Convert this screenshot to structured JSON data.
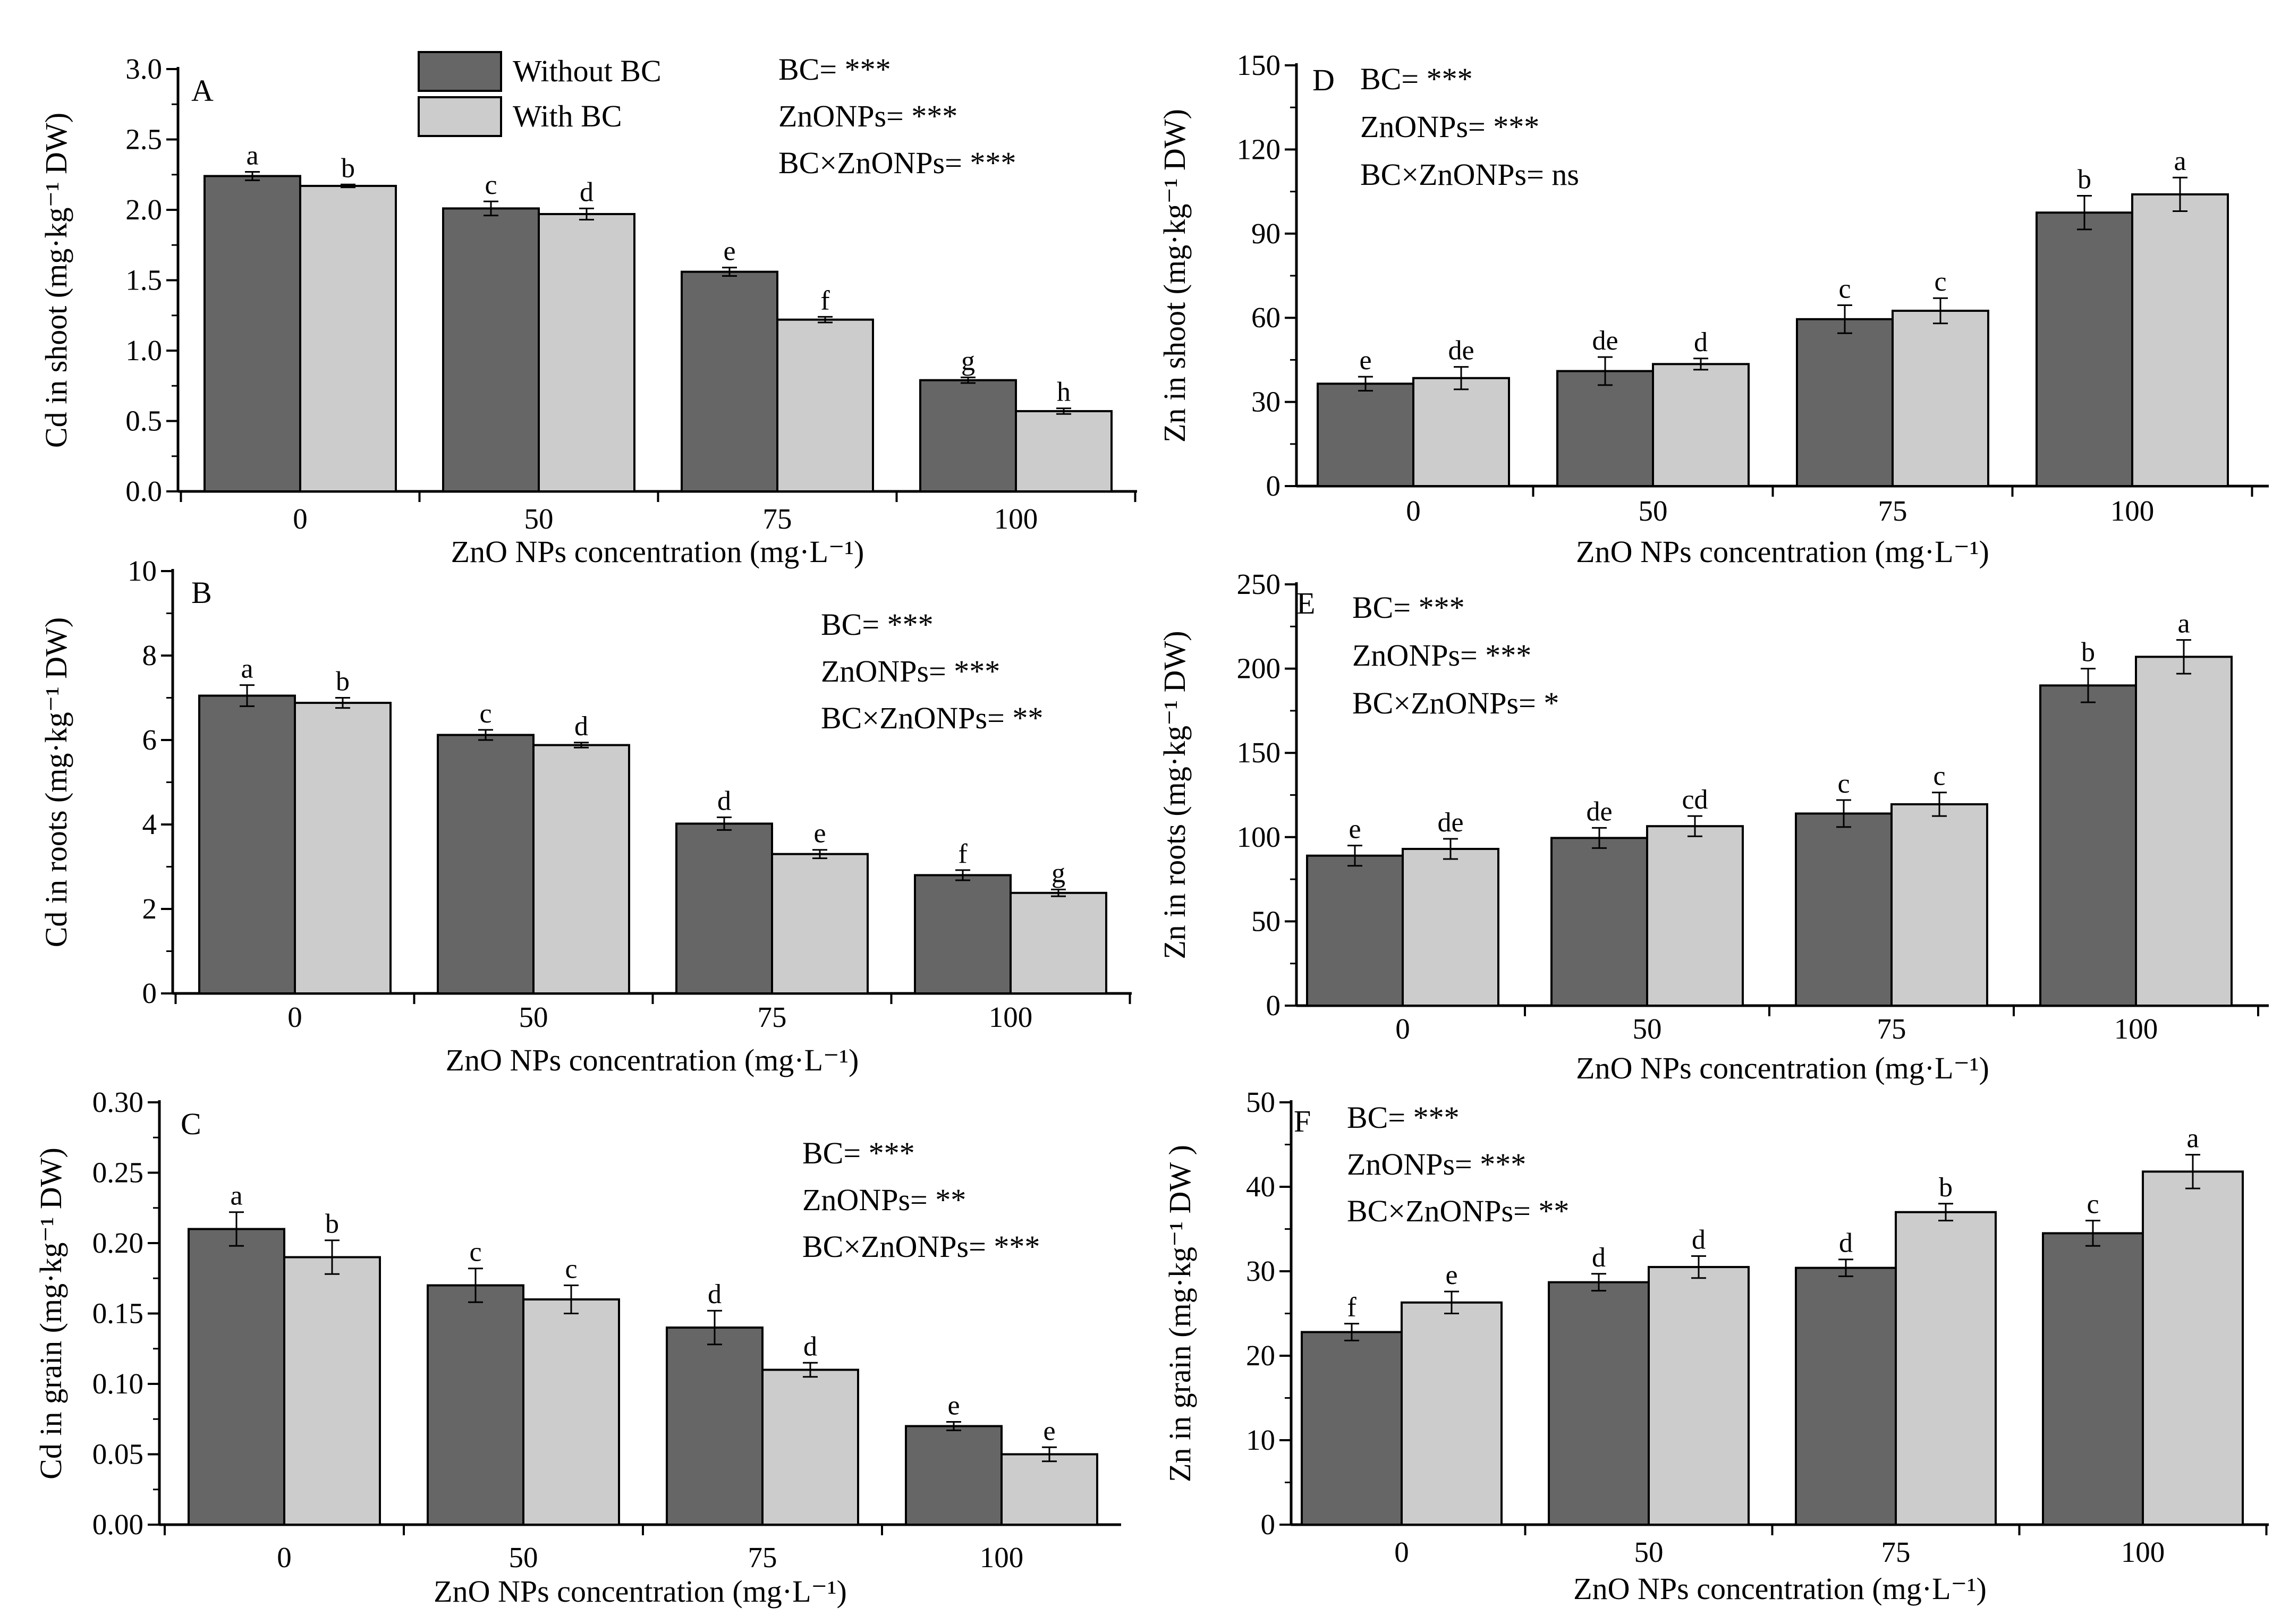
{
  "figure": {
    "legend": [
      {
        "label": "Without BC",
        "color": "#666666"
      },
      {
        "label": "With BC",
        "color": "#cccccc"
      }
    ]
  },
  "chart_data": [
    {
      "panel": "A",
      "type": "bar",
      "categories": [
        "0",
        "50",
        "75",
        "100"
      ],
      "xlabel": "ZnO NPs concentration (mg·L⁻¹)",
      "ylabel": "Cd in shoot (mg·kg⁻¹ DW)",
      "ylim": [
        0,
        3.0
      ],
      "yticks": [
        "0.0",
        "0.5",
        "1.0",
        "1.5",
        "2.0",
        "2.5",
        "3.0"
      ],
      "stats": [
        "BC= ***",
        "ZnONPs= ***",
        "BC×ZnONPs= ***"
      ],
      "series": [
        {
          "name": "Without BC",
          "values": [
            2.24,
            2.01,
            1.56,
            0.79
          ],
          "err": [
            0.03,
            0.05,
            0.03,
            0.02
          ],
          "letters": [
            "a",
            "c",
            "e",
            "g"
          ]
        },
        {
          "name": "With BC",
          "values": [
            2.17,
            1.97,
            1.22,
            0.57
          ],
          "err": [
            0.01,
            0.04,
            0.02,
            0.02
          ],
          "letters": [
            "b",
            "d",
            "f",
            "h"
          ]
        }
      ]
    },
    {
      "panel": "B",
      "type": "bar",
      "categories": [
        "0",
        "50",
        "75",
        "100"
      ],
      "xlabel": "ZnO NPs concentration (mg·L⁻¹)",
      "ylabel": "Cd in roots (mg·kg⁻¹ DW)",
      "ylim": [
        0,
        10
      ],
      "yticks": [
        "0",
        "2",
        "4",
        "6",
        "8",
        "10"
      ],
      "stats": [
        "BC= ***",
        "ZnONPs= ***",
        "BC×ZnONPs= **"
      ],
      "series": [
        {
          "name": "Without BC",
          "values": [
            7.05,
            6.12,
            4.02,
            2.8
          ],
          "err": [
            0.25,
            0.12,
            0.15,
            0.12
          ],
          "letters": [
            "a",
            "c",
            "d",
            "f"
          ]
        },
        {
          "name": "With BC",
          "values": [
            6.88,
            5.88,
            3.3,
            2.38
          ],
          "err": [
            0.12,
            0.06,
            0.1,
            0.08
          ],
          "letters": [
            "b",
            "d",
            "e",
            "g"
          ]
        }
      ]
    },
    {
      "panel": "C",
      "type": "bar",
      "categories": [
        "0",
        "50",
        "75",
        "100"
      ],
      "xlabel": "ZnO NPs concentration (mg·L⁻¹)",
      "ylabel": "Cd in grain (mg·kg⁻¹ DW)",
      "ylim": [
        0,
        0.3
      ],
      "yticks": [
        "0.00",
        "0.05",
        "0.10",
        "0.15",
        "0.20",
        "0.25",
        "0.30"
      ],
      "stats": [
        "BC= ***",
        "ZnONPs= **",
        "BC×ZnONPs= ***"
      ],
      "series": [
        {
          "name": "Without BC",
          "values": [
            0.21,
            0.17,
            0.14,
            0.07
          ],
          "err": [
            0.012,
            0.012,
            0.012,
            0.003
          ],
          "letters": [
            "a",
            "c",
            "d",
            "e"
          ]
        },
        {
          "name": "With BC",
          "values": [
            0.19,
            0.16,
            0.11,
            0.05
          ],
          "err": [
            0.012,
            0.01,
            0.005,
            0.005
          ],
          "letters": [
            "b",
            "c",
            "d",
            "e"
          ]
        }
      ]
    },
    {
      "panel": "D",
      "type": "bar",
      "categories": [
        "0",
        "50",
        "75",
        "100"
      ],
      "xlabel": "ZnO NPs concentration (mg·L⁻¹)",
      "ylabel": "Zn in shoot (mg·kg⁻¹ DW)",
      "ylim": [
        0,
        150
      ],
      "yticks": [
        "0",
        "30",
        "60",
        "90",
        "120",
        "150"
      ],
      "stats": [
        "BC= ***",
        "ZnONPs= ***",
        "BC×ZnONPs= ns"
      ],
      "series": [
        {
          "name": "Without BC",
          "values": [
            36.5,
            41,
            59.5,
            97.5
          ],
          "err": [
            2.5,
            5,
            5,
            6
          ],
          "letters": [
            "e",
            "de",
            "c",
            "b"
          ]
        },
        {
          "name": "With BC",
          "values": [
            38.5,
            43.5,
            62.5,
            104
          ],
          "err": [
            4,
            2,
            4.5,
            6
          ],
          "letters": [
            "de",
            "d",
            "c",
            "a"
          ]
        }
      ]
    },
    {
      "panel": "E",
      "type": "bar",
      "categories": [
        "0",
        "50",
        "75",
        "100"
      ],
      "xlabel": "ZnO NPs concentration (mg·L⁻¹)",
      "ylabel": "Zn in roots (mg·kg⁻¹ DW)",
      "ylim": [
        0,
        250
      ],
      "yticks": [
        "0",
        "50",
        "100",
        "150",
        "200",
        "250"
      ],
      "stats": [
        "BC= ***",
        "ZnONPs= ***",
        "BC×ZnONPs= *"
      ],
      "series": [
        {
          "name": "Without BC",
          "values": [
            89,
            99.5,
            114,
            190
          ],
          "err": [
            6,
            6,
            8,
            10
          ],
          "letters": [
            "e",
            "de",
            "c",
            "b"
          ]
        },
        {
          "name": "With BC",
          "values": [
            93,
            106.5,
            119.5,
            207
          ],
          "err": [
            6,
            6,
            7,
            10
          ],
          "letters": [
            "de",
            "cd",
            "c",
            "a"
          ]
        }
      ]
    },
    {
      "panel": "F",
      "type": "bar",
      "categories": [
        "0",
        "50",
        "75",
        "100"
      ],
      "xlabel": "ZnO NPs concentration (mg·L⁻¹)",
      "ylabel": "Zn in grain (mg·kg⁻¹ DW )",
      "ylim": [
        0,
        50
      ],
      "yticks": [
        "0",
        "10",
        "20",
        "30",
        "40",
        "50"
      ],
      "stats": [
        "BC= ***",
        "ZnONPs= ***",
        "BC×ZnONPs= **"
      ],
      "series": [
        {
          "name": "Without BC",
          "values": [
            22.8,
            28.7,
            30.4,
            34.5
          ],
          "err": [
            1,
            1,
            1,
            1.5
          ],
          "letters": [
            "f",
            "d",
            "d",
            "c"
          ]
        },
        {
          "name": "With BC",
          "values": [
            26.3,
            30.5,
            37,
            41.8
          ],
          "err": [
            1.3,
            1.3,
            1,
            2
          ],
          "letters": [
            "e",
            "d",
            "b",
            "a"
          ]
        }
      ]
    }
  ]
}
